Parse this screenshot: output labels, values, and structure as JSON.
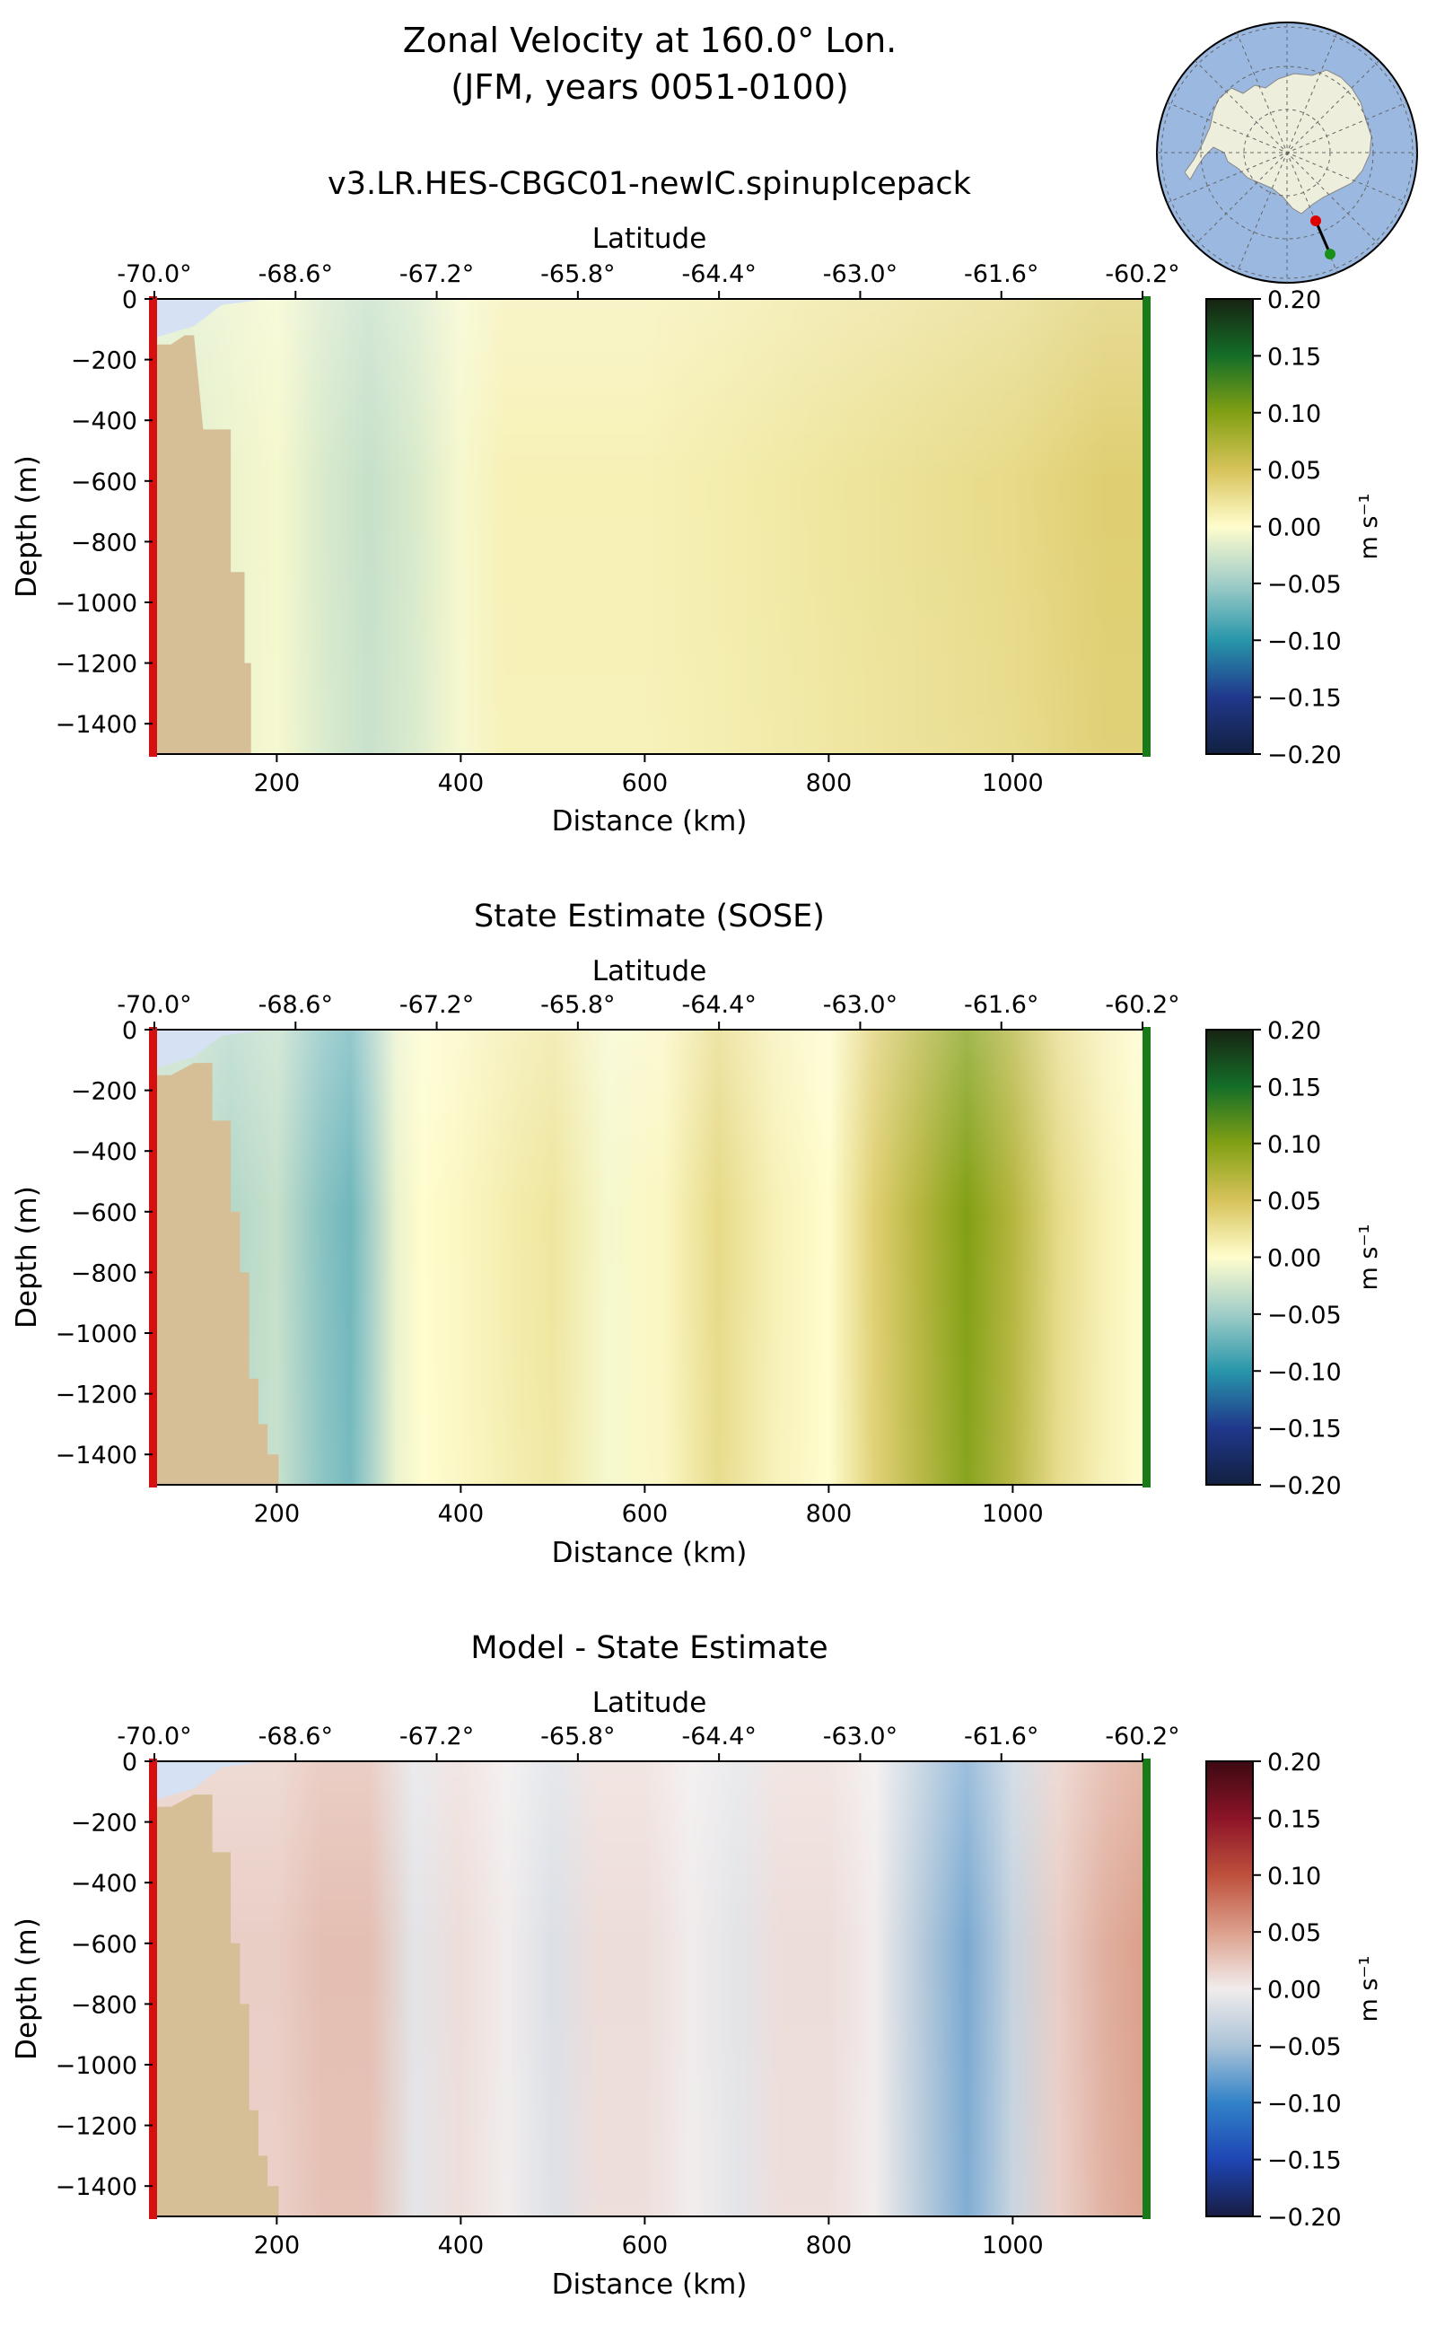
{
  "figure": {
    "title_line1": "Zonal Velocity at 160.0° Lon.",
    "title_line2": "(JFM, years 0051-0100)",
    "inset_map": {
      "continent": "Antarctica",
      "ocean_color": "#9ab8e0",
      "land_color": "#eeeedd",
      "start_marker_color": "#e00000",
      "end_marker_color": "#1a8f1a"
    }
  },
  "chart_data": [
    {
      "type": "heatmap",
      "title": "v3.LR.HES-CBGC01-newIC.spinupIcepack",
      "xlabel": "Distance (km)",
      "ylabel": "Depth (m)",
      "top_axis_label": "Latitude",
      "xlim": [
        65,
        1145
      ],
      "ylim": [
        -1500,
        0
      ],
      "xticks": [
        200,
        400,
        600,
        800,
        1000
      ],
      "yticks": [
        0,
        -200,
        -400,
        -600,
        -800,
        -1000,
        -1200,
        -1400
      ],
      "lat_ticks": [
        "-70.0°",
        "-68.6°",
        "-67.2°",
        "-65.8°",
        "-64.4°",
        "-63.0°",
        "-61.6°",
        "-60.2°"
      ],
      "colorbar": {
        "label": "m s⁻¹",
        "colormap": "delta",
        "range": [
          -0.2,
          0.2
        ],
        "ticks": [
          "0.20",
          "0.15",
          "0.10",
          "0.05",
          "0.00",
          "−0.05",
          "−0.10",
          "−0.15",
          "−0.20"
        ]
      },
      "bathymetry_km_m": [
        [
          65,
          -150
        ],
        [
          85,
          -150
        ],
        [
          100,
          -120
        ],
        [
          110,
          -120
        ],
        [
          120,
          -430
        ],
        [
          150,
          -430
        ],
        [
          150,
          -900
        ],
        [
          165,
          -900
        ],
        [
          165,
          -1200
        ],
        [
          172,
          -1200
        ],
        [
          172,
          -1500
        ]
      ],
      "velocity_profile": {
        "x": [
          100,
          150,
          200,
          250,
          300,
          350,
          400,
          450,
          500,
          600,
          700,
          800,
          900,
          1000,
          1100,
          1140
        ],
        "values": [
          -0.015,
          -0.01,
          -0.005,
          -0.02,
          -0.03,
          -0.02,
          -0.005,
          0.01,
          0.01,
          0.01,
          0.015,
          0.02,
          0.025,
          0.03,
          0.04,
          0.04
        ]
      }
    },
    {
      "type": "heatmap",
      "title": "State Estimate (SOSE)",
      "xlabel": "Distance (km)",
      "ylabel": "Depth (m)",
      "top_axis_label": "Latitude",
      "xlim": [
        65,
        1145
      ],
      "ylim": [
        -1500,
        0
      ],
      "xticks": [
        200,
        400,
        600,
        800,
        1000
      ],
      "yticks": [
        0,
        -200,
        -400,
        -600,
        -800,
        -1000,
        -1200,
        -1400
      ],
      "lat_ticks": [
        "-70.0°",
        "-68.6°",
        "-67.2°",
        "-65.8°",
        "-64.4°",
        "-63.0°",
        "-61.6°",
        "-60.2°"
      ],
      "colorbar": {
        "label": "m s⁻¹",
        "colormap": "delta",
        "range": [
          -0.2,
          0.2
        ],
        "ticks": [
          "0.20",
          "0.15",
          "0.10",
          "0.05",
          "0.00",
          "−0.05",
          "−0.10",
          "−0.15",
          "−0.20"
        ]
      },
      "bathymetry_km_m": [
        [
          65,
          -150
        ],
        [
          85,
          -150
        ],
        [
          110,
          -110
        ],
        [
          130,
          -110
        ],
        [
          130,
          -300
        ],
        [
          150,
          -300
        ],
        [
          150,
          -600
        ],
        [
          160,
          -600
        ],
        [
          160,
          -800
        ],
        [
          170,
          -800
        ],
        [
          170,
          -1150
        ],
        [
          180,
          -1150
        ],
        [
          180,
          -1300
        ],
        [
          190,
          -1300
        ],
        [
          190,
          -1400
        ],
        [
          202,
          -1400
        ],
        [
          202,
          -1500
        ]
      ],
      "velocity_profile": {
        "x": [
          100,
          150,
          200,
          250,
          280,
          300,
          330,
          360,
          400,
          460,
          500,
          560,
          620,
          680,
          740,
          800,
          850,
          900,
          950,
          1000,
          1050,
          1100,
          1140
        ],
        "values": [
          -0.03,
          -0.04,
          -0.03,
          -0.06,
          -0.07,
          -0.05,
          -0.01,
          0.0,
          0.005,
          0.015,
          0.02,
          -0.005,
          0.005,
          0.03,
          0.01,
          0.0,
          0.04,
          0.07,
          0.1,
          0.07,
          0.03,
          0.01,
          0.0
        ]
      }
    },
    {
      "type": "heatmap",
      "title": "Model - State Estimate",
      "xlabel": "Distance (km)",
      "ylabel": "Depth (m)",
      "top_axis_label": "Latitude",
      "xlim": [
        65,
        1145
      ],
      "ylim": [
        -1500,
        0
      ],
      "xticks": [
        200,
        400,
        600,
        800,
        1000
      ],
      "yticks": [
        0,
        -200,
        -400,
        -600,
        -800,
        -1000,
        -1200,
        -1400
      ],
      "lat_ticks": [
        "-70.0°",
        "-68.6°",
        "-67.2°",
        "-65.8°",
        "-64.4°",
        "-63.0°",
        "-61.6°",
        "-60.2°"
      ],
      "colorbar": {
        "label": "m s⁻¹",
        "colormap": "balance",
        "range": [
          -0.2,
          0.2
        ],
        "ticks": [
          "0.20",
          "0.15",
          "0.10",
          "0.05",
          "0.00",
          "−0.05",
          "−0.10",
          "−0.15",
          "−0.20"
        ]
      },
      "bathymetry_km_m": [
        [
          65,
          -150
        ],
        [
          85,
          -150
        ],
        [
          110,
          -110
        ],
        [
          130,
          -110
        ],
        [
          130,
          -300
        ],
        [
          150,
          -300
        ],
        [
          150,
          -600
        ],
        [
          160,
          -600
        ],
        [
          160,
          -800
        ],
        [
          170,
          -800
        ],
        [
          170,
          -1150
        ],
        [
          180,
          -1150
        ],
        [
          180,
          -1300
        ],
        [
          190,
          -1300
        ],
        [
          190,
          -1400
        ],
        [
          202,
          -1400
        ],
        [
          202,
          -1500
        ]
      ],
      "velocity_profile": {
        "x": [
          100,
          150,
          200,
          250,
          300,
          350,
          400,
          450,
          500,
          550,
          600,
          650,
          700,
          750,
          800,
          850,
          900,
          950,
          1000,
          1050,
          1100,
          1140
        ],
        "values": [
          0.02,
          0.02,
          0.02,
          0.03,
          0.03,
          -0.01,
          0.01,
          0.0,
          -0.015,
          0.01,
          0.01,
          0.0,
          -0.01,
          0.01,
          0.01,
          0.0,
          -0.04,
          -0.07,
          -0.03,
          0.02,
          0.04,
          0.05
        ]
      }
    }
  ]
}
